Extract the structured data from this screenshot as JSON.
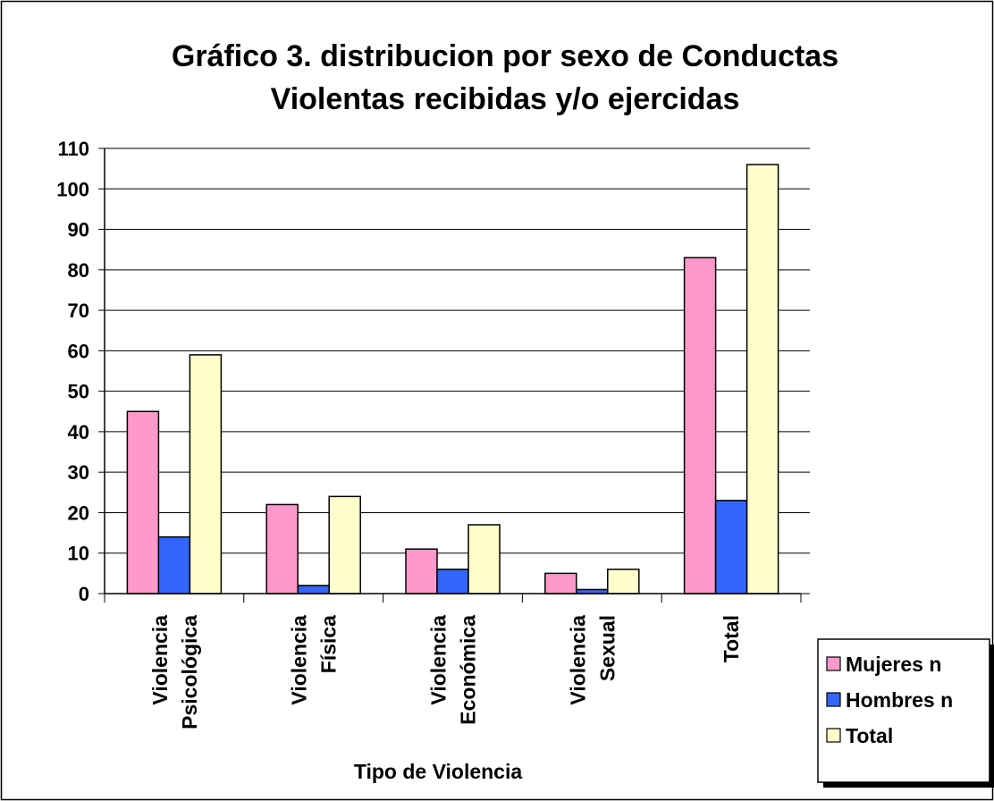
{
  "chart_data": {
    "type": "bar",
    "title": [
      "Gráfico 3. distribucion por sexo de Conductas",
      "Violentas recibidas y/o ejercidas"
    ],
    "x_label": "Tipo de Violencia",
    "categories": [
      [
        "Violencia",
        "Psicológica"
      ],
      [
        "Violencia",
        "Física"
      ],
      [
        "Violencia",
        "Económica"
      ],
      [
        "Violencia",
        "Sexual"
      ],
      [
        "Total"
      ]
    ],
    "series": [
      {
        "name": "Mujeres n",
        "color": "#ff99cc",
        "values": [
          45,
          22,
          11,
          5,
          83
        ]
      },
      {
        "name": "Hombres n",
        "color": "#3366ff",
        "values": [
          14,
          2,
          6,
          1,
          23
        ]
      },
      {
        "name": "Total",
        "color": "#ffffcc",
        "values": [
          59,
          24,
          17,
          6,
          106
        ]
      }
    ],
    "ylim": [
      0,
      110
    ],
    "yticks": [
      0,
      10,
      20,
      30,
      40,
      50,
      60,
      70,
      80,
      90,
      100,
      110
    ],
    "grid": true,
    "legend": "bottom-right"
  }
}
